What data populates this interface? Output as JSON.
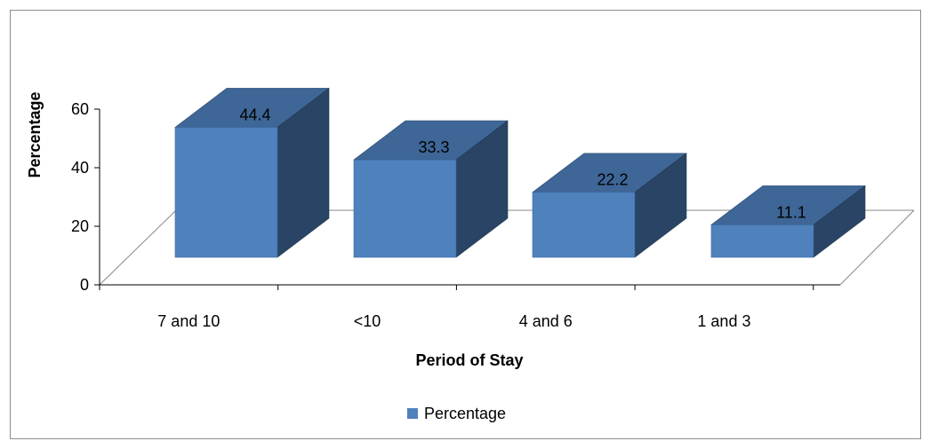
{
  "chart_data": {
    "type": "bar",
    "title": "",
    "xlabel": "Period of Stay",
    "ylabel": "Percentage",
    "categories": [
      "7 and 10",
      "<10",
      "4 and 6",
      "1 and 3"
    ],
    "series": [
      {
        "name": "Percentage",
        "values": [
          44.4,
          33.3,
          22.2,
          11.1
        ]
      }
    ],
    "data_labels": [
      "44.4",
      "33.3",
      "22.2",
      "11.1"
    ],
    "ylim": [
      0,
      60
    ],
    "yticks": [
      0,
      20,
      40,
      60
    ],
    "ytick_labels": [
      "0",
      "20",
      "40",
      "60"
    ],
    "grid": false,
    "legend": "bottom",
    "three_d": true,
    "colors": {
      "front": "#4f81bd",
      "top": "#3e6697",
      "side": "#2a4466"
    }
  }
}
